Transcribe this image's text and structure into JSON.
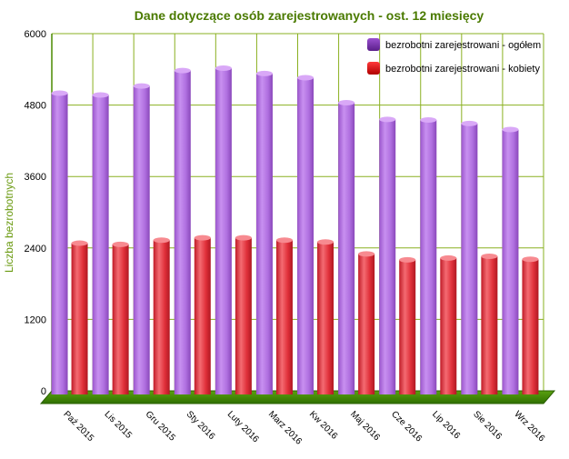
{
  "chart_data": {
    "type": "bar",
    "title": "Dane dotyczące osób zarejestrowanych - ost. 12 miesięcy",
    "xlabel": "",
    "ylabel": "Liczba bezrobotnych",
    "ylim": [
      0,
      6000
    ],
    "yticks": [
      0,
      1200,
      2400,
      3600,
      4800,
      6000
    ],
    "grid": true,
    "legend_position": "top-right",
    "categories": [
      "Paź 2015",
      "Lis 2015",
      "Gru 2015",
      "Sty 2016",
      "Luty 2016",
      "Marz 2016",
      "Kw 2016",
      "Maj 2016",
      "Cze 2016",
      "Lip 2016",
      "Sie 2016",
      "Wrz 2016"
    ],
    "series": [
      {
        "name": "bezrobotni zarejestrowani - ogółem",
        "color": "#b070e0",
        "values": [
          5000,
          4970,
          5120,
          5380,
          5420,
          5330,
          5260,
          4840,
          4560,
          4550,
          4490,
          4390
        ]
      },
      {
        "name": "bezrobotni zarejestrowani - kobiety",
        "color": "#e0303a",
        "values": [
          2480,
          2460,
          2530,
          2570,
          2570,
          2530,
          2500,
          2300,
          2200,
          2230,
          2260,
          2210
        ]
      }
    ],
    "colors": {
      "grid": "#8ab020",
      "axis": "#4a8a00",
      "floor": "#3f8a00",
      "title": "#4a7a00"
    }
  }
}
